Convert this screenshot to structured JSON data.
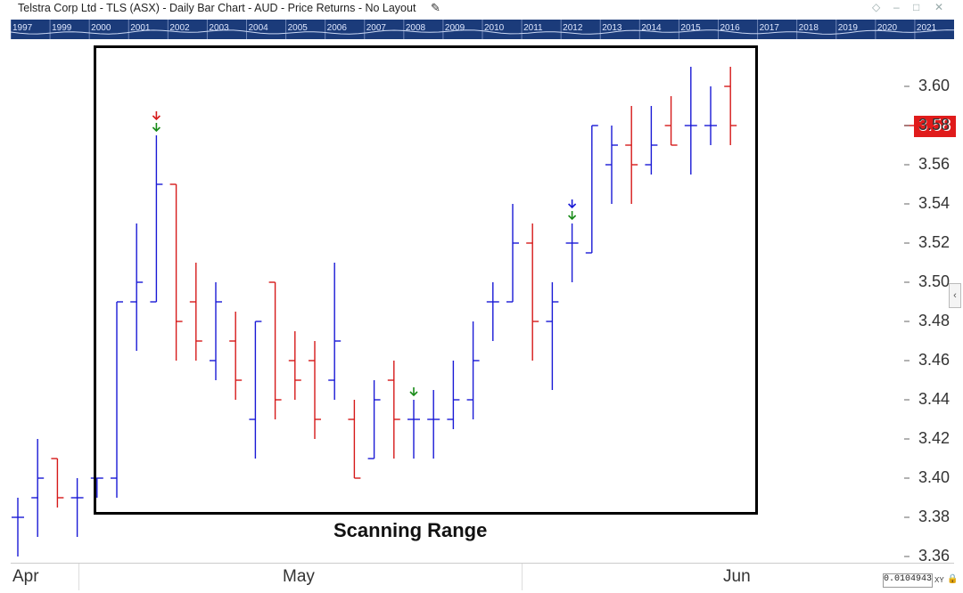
{
  "window": {
    "title": "Telstra Corp Ltd - TLS (ASX) - Daily Bar Chart - AUD - Price Returns - No Layout",
    "pencil_icon": "pencil-icon",
    "buttons": [
      "diamond-icon",
      "minimize-icon",
      "maximize-icon",
      "close-icon"
    ]
  },
  "navigator": {
    "years": [
      "1997",
      "1999",
      "2000",
      "2001",
      "2002",
      "2003",
      "2004",
      "2005",
      "2006",
      "2007",
      "2008",
      "2009",
      "2010",
      "2011",
      "2012",
      "2013",
      "2014",
      "2015",
      "2016",
      "2017",
      "2018",
      "2019",
      "2020",
      "2021"
    ]
  },
  "colors": {
    "up": "#1a1ad6",
    "down": "#d61a1a",
    "last_price_bg": "#e01b1b",
    "navigator_bg": "#1b3b7a"
  },
  "annotation": {
    "scanning_label": "Scanning Range"
  },
  "last_price": "3.58",
  "scale_box": {
    "value": "0.0104943",
    "xy_label": "XY"
  },
  "chart_data": {
    "type": "bar",
    "title": "Telstra Corp Ltd - TLS (ASX) - Daily Bar Chart - AUD - Price Returns - No Layout",
    "x_labels": [
      "Apr",
      "May",
      "Jun"
    ],
    "y_ticks": [
      "3.36",
      "3.38",
      "3.40",
      "3.42",
      "3.44",
      "3.46",
      "3.48",
      "3.50",
      "3.52",
      "3.54",
      "3.56",
      "3.58",
      "3.60"
    ],
    "ylim": [
      3.36,
      3.62
    ],
    "last_price": 3.58,
    "bars": [
      {
        "o": 3.38,
        "h": 3.39,
        "l": 3.36,
        "c": 3.38,
        "dir": "up"
      },
      {
        "o": 3.39,
        "h": 3.42,
        "l": 3.37,
        "c": 3.4,
        "dir": "up"
      },
      {
        "o": 3.41,
        "h": 3.41,
        "l": 3.385,
        "c": 3.39,
        "dir": "down"
      },
      {
        "o": 3.39,
        "h": 3.4,
        "l": 3.37,
        "c": 3.39,
        "dir": "up"
      },
      {
        "o": 3.4,
        "h": 3.4,
        "l": 3.39,
        "c": 3.4,
        "dir": "up"
      },
      {
        "o": 3.4,
        "h": 3.49,
        "l": 3.39,
        "c": 3.49,
        "dir": "up"
      },
      {
        "o": 3.49,
        "h": 3.53,
        "l": 3.465,
        "c": 3.5,
        "dir": "up"
      },
      {
        "o": 3.49,
        "h": 3.575,
        "l": 3.49,
        "c": 3.55,
        "dir": "up"
      },
      {
        "o": 3.55,
        "h": 3.55,
        "l": 3.46,
        "c": 3.48,
        "dir": "down"
      },
      {
        "o": 3.49,
        "h": 3.51,
        "l": 3.46,
        "c": 3.47,
        "dir": "down"
      },
      {
        "o": 3.46,
        "h": 3.5,
        "l": 3.45,
        "c": 3.49,
        "dir": "up"
      },
      {
        "o": 3.47,
        "h": 3.485,
        "l": 3.44,
        "c": 3.45,
        "dir": "down"
      },
      {
        "o": 3.43,
        "h": 3.48,
        "l": 3.41,
        "c": 3.48,
        "dir": "up"
      },
      {
        "o": 3.5,
        "h": 3.5,
        "l": 3.43,
        "c": 3.44,
        "dir": "down"
      },
      {
        "o": 3.46,
        "h": 3.475,
        "l": 3.44,
        "c": 3.45,
        "dir": "down"
      },
      {
        "o": 3.46,
        "h": 3.47,
        "l": 3.42,
        "c": 3.43,
        "dir": "down"
      },
      {
        "o": 3.45,
        "h": 3.51,
        "l": 3.44,
        "c": 3.47,
        "dir": "up"
      },
      {
        "o": 3.43,
        "h": 3.44,
        "l": 3.4,
        "c": 3.4,
        "dir": "down"
      },
      {
        "o": 3.41,
        "h": 3.45,
        "l": 3.41,
        "c": 3.44,
        "dir": "up"
      },
      {
        "o": 3.45,
        "h": 3.46,
        "l": 3.41,
        "c": 3.43,
        "dir": "down"
      },
      {
        "o": 3.43,
        "h": 3.44,
        "l": 3.41,
        "c": 3.43,
        "dir": "up"
      },
      {
        "o": 3.43,
        "h": 3.445,
        "l": 3.41,
        "c": 3.43,
        "dir": "up"
      },
      {
        "o": 3.43,
        "h": 3.46,
        "l": 3.425,
        "c": 3.44,
        "dir": "up"
      },
      {
        "o": 3.44,
        "h": 3.48,
        "l": 3.43,
        "c": 3.46,
        "dir": "up"
      },
      {
        "o": 3.49,
        "h": 3.5,
        "l": 3.47,
        "c": 3.49,
        "dir": "up"
      },
      {
        "o": 3.49,
        "h": 3.54,
        "l": 3.49,
        "c": 3.52,
        "dir": "up"
      },
      {
        "o": 3.52,
        "h": 3.53,
        "l": 3.46,
        "c": 3.48,
        "dir": "down"
      },
      {
        "o": 3.48,
        "h": 3.5,
        "l": 3.445,
        "c": 3.49,
        "dir": "up"
      },
      {
        "o": 3.52,
        "h": 3.53,
        "l": 3.5,
        "c": 3.52,
        "dir": "up"
      },
      {
        "o": 3.515,
        "h": 3.58,
        "l": 3.515,
        "c": 3.58,
        "dir": "up"
      },
      {
        "o": 3.56,
        "h": 3.58,
        "l": 3.54,
        "c": 3.57,
        "dir": "up"
      },
      {
        "o": 3.57,
        "h": 3.59,
        "l": 3.54,
        "c": 3.56,
        "dir": "down"
      },
      {
        "o": 3.56,
        "h": 3.59,
        "l": 3.555,
        "c": 3.57,
        "dir": "up"
      },
      {
        "o": 3.58,
        "h": 3.595,
        "l": 3.57,
        "c": 3.57,
        "dir": "down"
      },
      {
        "o": 3.58,
        "h": 3.61,
        "l": 3.555,
        "c": 3.58,
        "dir": "up"
      },
      {
        "o": 3.58,
        "h": 3.6,
        "l": 3.57,
        "c": 3.58,
        "dir": "up"
      },
      {
        "o": 3.6,
        "h": 3.61,
        "l": 3.57,
        "c": 3.58,
        "dir": "down"
      }
    ],
    "markers": [
      {
        "bar": 7,
        "color": "red"
      },
      {
        "bar": 7,
        "color": "green"
      },
      {
        "bar": 20,
        "color": "green"
      },
      {
        "bar": 28,
        "color": "blue"
      },
      {
        "bar": 28,
        "color": "green"
      }
    ]
  }
}
